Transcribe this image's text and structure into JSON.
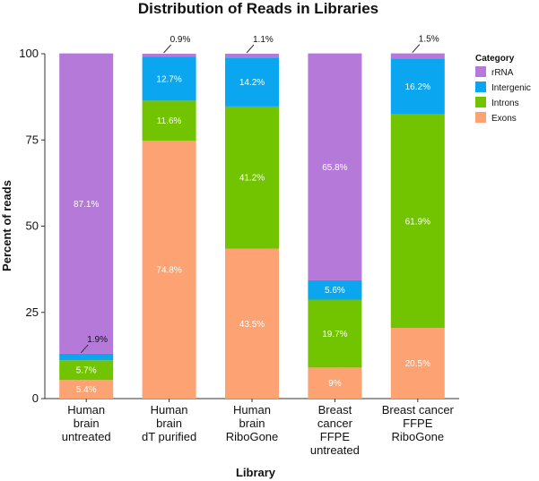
{
  "chart_data": {
    "type": "bar",
    "stacked": true,
    "title": "Distribution of Reads in Libraries",
    "xlabel": "Library",
    "ylabel": "Percent of reads",
    "ylim": [
      0,
      100
    ],
    "yticks": [
      "0",
      "25",
      "50",
      "75",
      "100"
    ],
    "categories": [
      "Human brain untreated",
      "Human brain dT purified",
      "Human brain RiboGone",
      "Breast cancer FFPE untreated",
      "Breast cancer FFPE RiboGone"
    ],
    "category_lines": [
      [
        "Human",
        "brain",
        "untreated"
      ],
      [
        "Human",
        "brain",
        "dT purified"
      ],
      [
        "Human",
        "brain",
        "RiboGone"
      ],
      [
        "Breast",
        "cancer",
        "FFPE",
        "untreated"
      ],
      [
        "Breast cancer",
        "FFPE",
        "RiboGone"
      ]
    ],
    "series": [
      {
        "name": "Exons",
        "color": "#fca273",
        "values": [
          5.4,
          74.8,
          43.5,
          9,
          20.5
        ],
        "labels": [
          "5.4%",
          "74.8%",
          "43.5%",
          "9%",
          "20.5%"
        ]
      },
      {
        "name": "Introns",
        "color": "#72c400",
        "values": [
          5.7,
          11.6,
          41.2,
          19.7,
          61.9
        ],
        "labels": [
          "5.7%",
          "11.6%",
          "41.2%",
          "19.7%",
          "61.9%"
        ]
      },
      {
        "name": "Intergenic",
        "color": "#0aa6f0",
        "values": [
          1.9,
          12.7,
          14.2,
          5.6,
          16.2
        ],
        "labels": [
          "1.9%",
          "12.7%",
          "14.2%",
          "5.6%",
          "16.2%"
        ]
      },
      {
        "name": "rRNA",
        "color": "#b57ad9",
        "values": [
          87.1,
          0.9,
          1.1,
          65.8,
          1.5
        ],
        "labels": [
          "87.1%",
          "0.9%",
          "1.1%",
          "65.8%",
          "1.5%"
        ]
      }
    ],
    "legend": {
      "title": "Category",
      "position": "top-right",
      "order": [
        "rRNA",
        "Intergenic",
        "Introns",
        "Exons"
      ]
    },
    "grid": false
  }
}
